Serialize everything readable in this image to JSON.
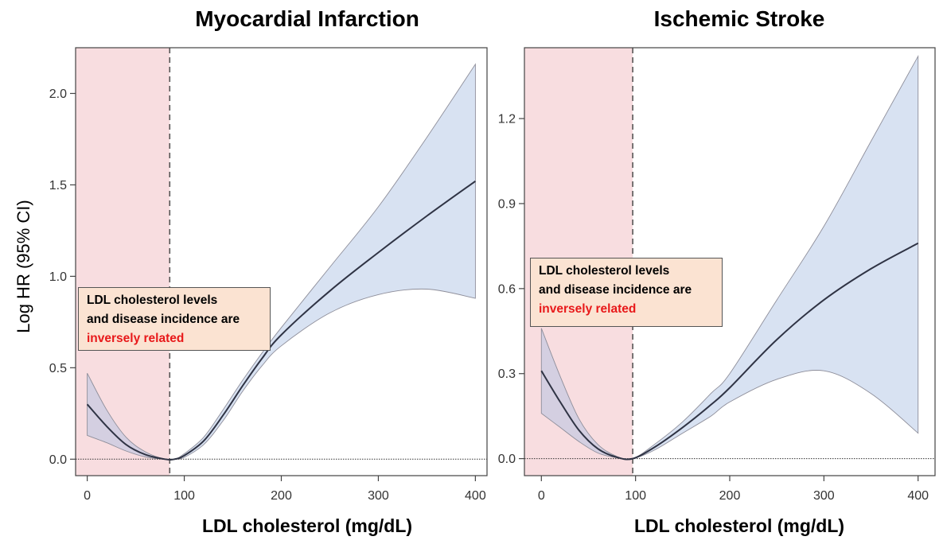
{
  "figure": {
    "ylabel": "Log HR (95% CI)"
  },
  "chart_data": [
    {
      "type": "line",
      "title": "Myocardial Infarction",
      "xlabel": "LDL cholesterol (mg/dL)",
      "ylabel": "Log HR (95% CI)",
      "xlim": [
        -12,
        412
      ],
      "ylim": [
        -0.09,
        2.25
      ],
      "xticks": [
        0,
        100,
        200,
        300,
        400
      ],
      "xtick_labels": [
        "0",
        "100",
        "200",
        "300",
        "400"
      ],
      "yticks": [
        0.0,
        0.5,
        1.0,
        1.5,
        2.0
      ],
      "ytick_labels": [
        "0.0",
        "0.5",
        "1.0",
        "1.5",
        "2.0"
      ],
      "reference_line_y": 0.0,
      "threshold_x": 85,
      "shaded_region_x": [
        -12,
        85
      ],
      "x": [
        0,
        20,
        40,
        60,
        80,
        90,
        100,
        120,
        140,
        160,
        180,
        200,
        250,
        300,
        350,
        400
      ],
      "estimate": [
        0.3,
        0.18,
        0.08,
        0.025,
        0.0,
        0.0,
        0.02,
        0.1,
        0.24,
        0.4,
        0.55,
        0.68,
        0.92,
        1.13,
        1.33,
        1.52
      ],
      "ci_lower": [
        0.13,
        0.09,
        0.045,
        0.012,
        0.0,
        0.0,
        0.01,
        0.08,
        0.21,
        0.37,
        0.51,
        0.62,
        0.8,
        0.9,
        0.93,
        0.88
      ],
      "ci_upper": [
        0.47,
        0.27,
        0.12,
        0.04,
        0.0,
        0.0,
        0.03,
        0.12,
        0.27,
        0.43,
        0.58,
        0.72,
        1.05,
        1.38,
        1.76,
        2.16
      ],
      "annotation": {
        "line1": "LDL cholesterol levels",
        "line2": "and disease incidence are",
        "highlight": "inversely related"
      }
    },
    {
      "type": "line",
      "title": "Ischemic Stroke",
      "xlabel": "LDL cholesterol (mg/dL)",
      "ylabel": "",
      "xlim": [
        -18,
        418
      ],
      "ylim": [
        -0.06,
        1.45
      ],
      "xticks": [
        0,
        100,
        200,
        300,
        400
      ],
      "xtick_labels": [
        "0",
        "100",
        "200",
        "300",
        "400"
      ],
      "yticks": [
        0.0,
        0.3,
        0.6,
        0.9,
        1.2
      ],
      "ytick_labels": [
        "0.0",
        "0.3",
        "0.6",
        "0.9",
        "1.2"
      ],
      "reference_line_y": 0.0,
      "threshold_x": 97,
      "shaded_region_x": [
        -18,
        97
      ],
      "x": [
        0,
        20,
        40,
        60,
        80,
        97,
        120,
        150,
        180,
        200,
        250,
        300,
        350,
        400
      ],
      "estimate": [
        0.31,
        0.2,
        0.1,
        0.035,
        0.005,
        0.0,
        0.04,
        0.11,
        0.19,
        0.25,
        0.42,
        0.56,
        0.67,
        0.76
      ],
      "ci_lower": [
        0.16,
        0.11,
        0.06,
        0.02,
        0.003,
        0.0,
        0.03,
        0.09,
        0.15,
        0.2,
        0.28,
        0.31,
        0.23,
        0.09
      ],
      "ci_upper": [
        0.46,
        0.29,
        0.14,
        0.05,
        0.008,
        0.0,
        0.05,
        0.13,
        0.23,
        0.3,
        0.56,
        0.82,
        1.12,
        1.42
      ],
      "annotation": {
        "line1": "LDL cholesterol levels",
        "line2": "and disease incidence are",
        "highlight": "inversely related"
      }
    }
  ]
}
